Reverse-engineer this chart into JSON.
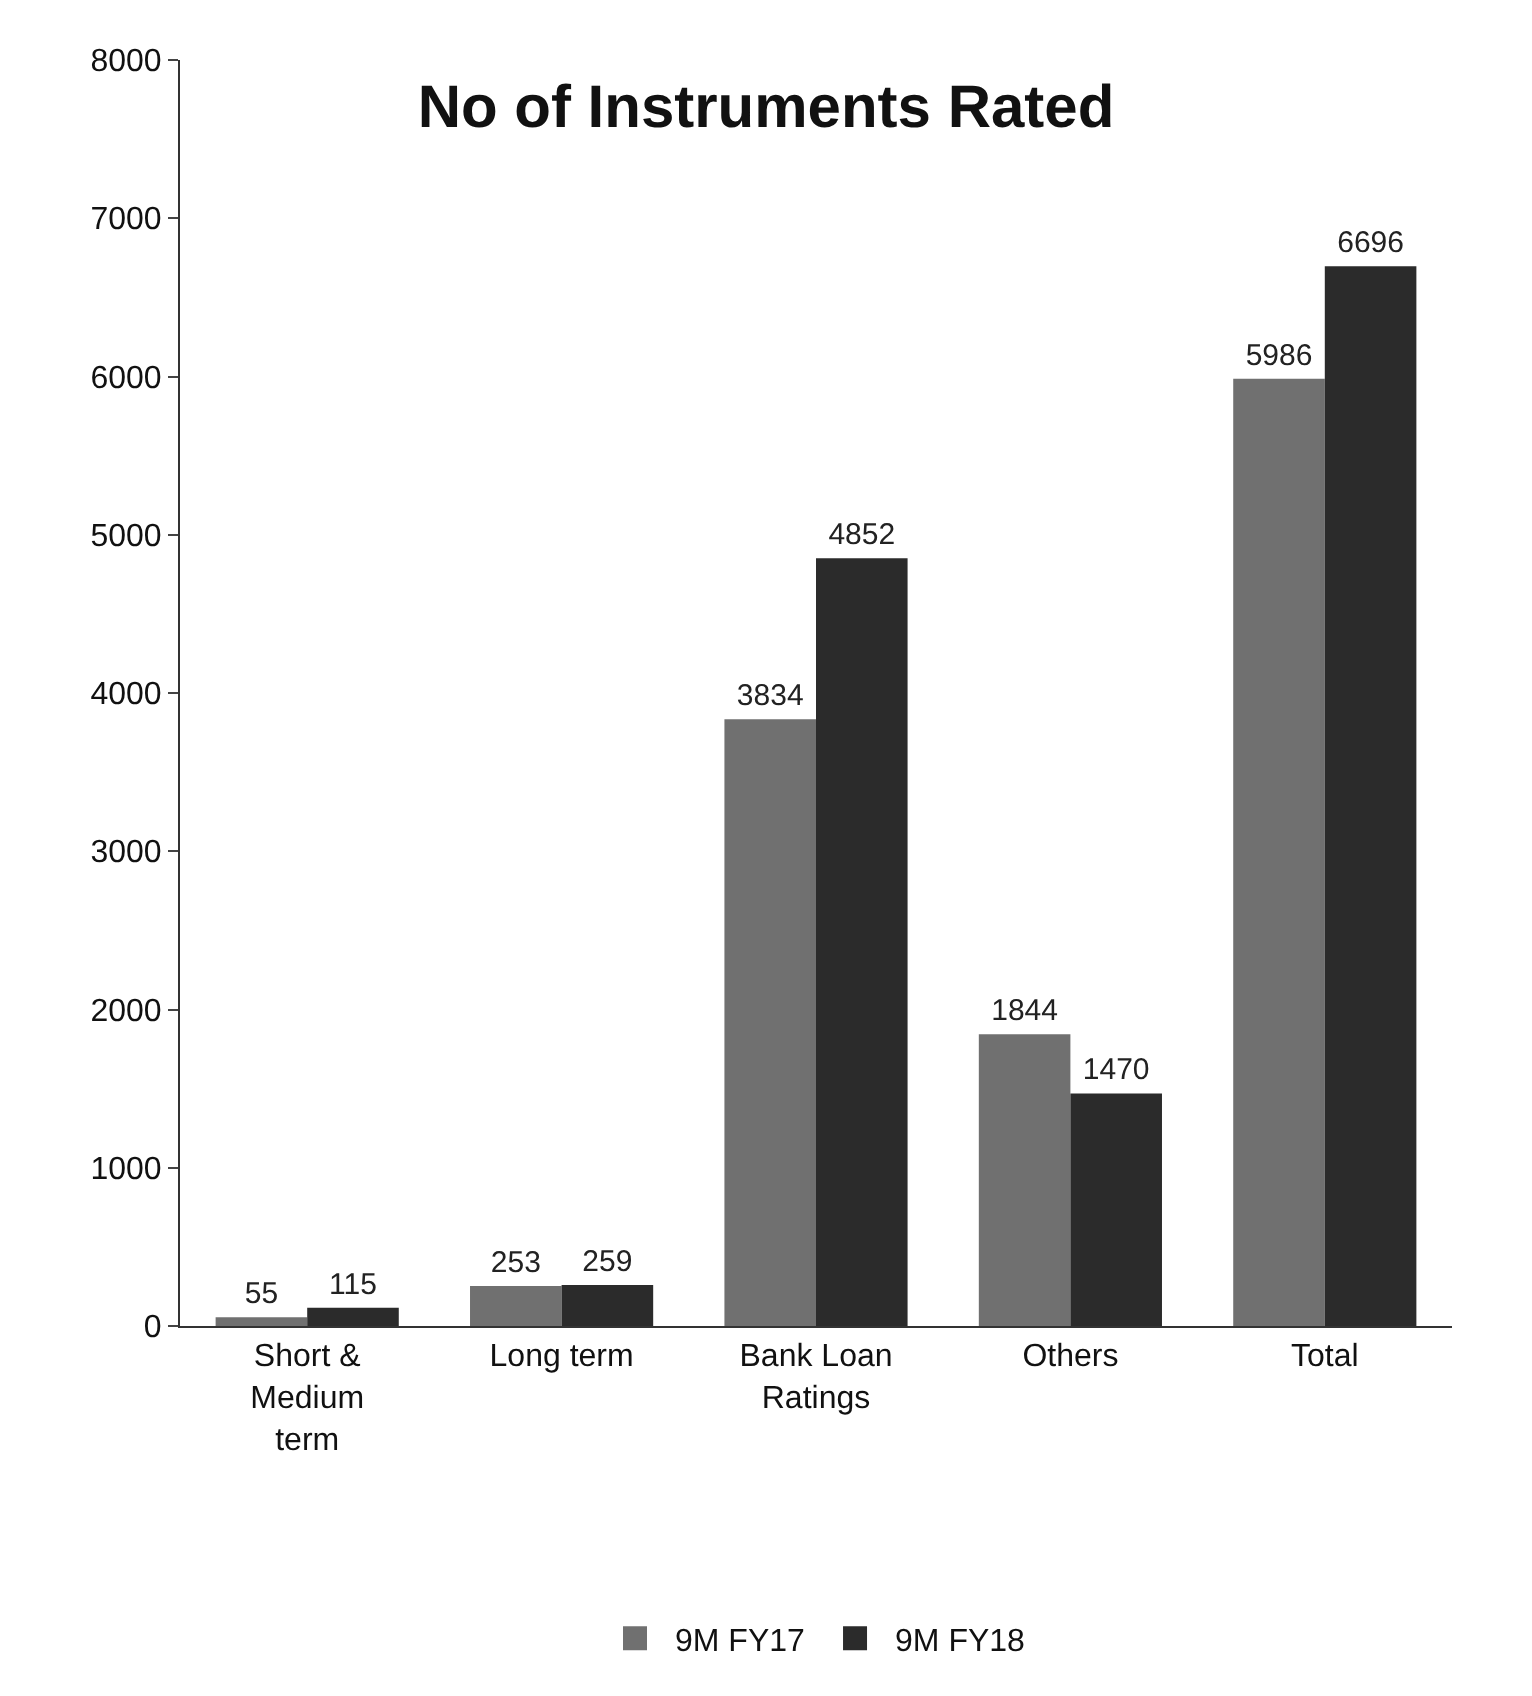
{
  "chart_data": {
    "type": "bar",
    "title": "No of Instruments Rated",
    "categories": [
      "Short & Medium term",
      "Long term",
      "Bank Loan Ratings",
      "Others",
      "Total"
    ],
    "series": [
      {
        "name": "9M FY17",
        "color": "#707070",
        "values": [
          55,
          253,
          3834,
          1844,
          5986
        ]
      },
      {
        "name": "9M FY18",
        "color": "#2b2b2b",
        "values": [
          115,
          259,
          4852,
          1470,
          6696
        ]
      }
    ],
    "ylim": [
      0,
      8000
    ],
    "yticks": [
      0,
      1000,
      2000,
      3000,
      4000,
      5000,
      6000,
      7000,
      8000
    ],
    "data_labels": true,
    "legend": "bottom"
  }
}
